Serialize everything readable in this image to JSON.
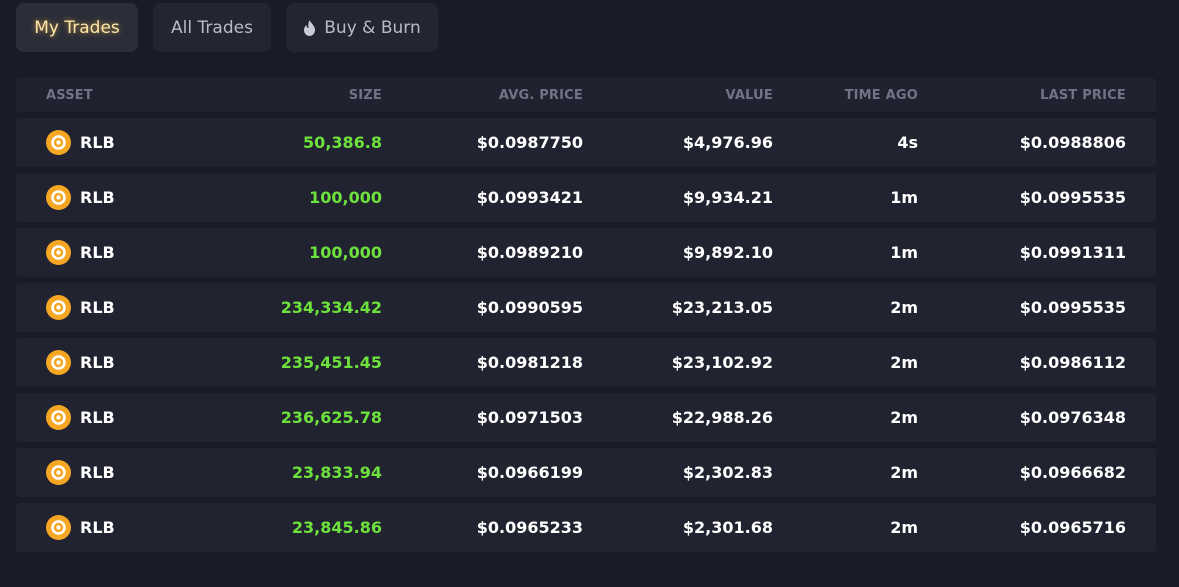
{
  "tabs": [
    {
      "label": "My Trades",
      "active": true
    },
    {
      "label": "All Trades",
      "active": false
    },
    {
      "label": "Buy & Burn",
      "active": false,
      "icon": "fire-icon"
    }
  ],
  "table": {
    "headers": {
      "asset": "ASSET",
      "size": "SIZE",
      "avg_price": "AVG. PRICE",
      "value": "VALUE",
      "time_ago": "TIME AGO",
      "last_price": "LAST PRICE"
    },
    "rows": [
      {
        "asset": "RLB",
        "size": "50,386.8",
        "avg_price": "$0.0987750",
        "value": "$4,976.96",
        "time_ago": "4s",
        "last_price": "$0.0988806"
      },
      {
        "asset": "RLB",
        "size": "100,000",
        "avg_price": "$0.0993421",
        "value": "$9,934.21",
        "time_ago": "1m",
        "last_price": "$0.0995535"
      },
      {
        "asset": "RLB",
        "size": "100,000",
        "avg_price": "$0.0989210",
        "value": "$9,892.10",
        "time_ago": "1m",
        "last_price": "$0.0991311"
      },
      {
        "asset": "RLB",
        "size": "234,334.42",
        "avg_price": "$0.0990595",
        "value": "$23,213.05",
        "time_ago": "2m",
        "last_price": "$0.0995535"
      },
      {
        "asset": "RLB",
        "size": "235,451.45",
        "avg_price": "$0.0981218",
        "value": "$23,102.92",
        "time_ago": "2m",
        "last_price": "$0.0986112"
      },
      {
        "asset": "RLB",
        "size": "236,625.78",
        "avg_price": "$0.0971503",
        "value": "$22,988.26",
        "time_ago": "2m",
        "last_price": "$0.0976348"
      },
      {
        "asset": "RLB",
        "size": "23,833.94",
        "avg_price": "$0.0966199",
        "value": "$2,302.83",
        "time_ago": "2m",
        "last_price": "$0.0966682"
      },
      {
        "asset": "RLB",
        "size": "23,845.86",
        "avg_price": "$0.0965233",
        "value": "$2,301.68",
        "time_ago": "2m",
        "last_price": "$0.0965716"
      }
    ]
  },
  "colors": {
    "background": "#191b26",
    "row_bg": "#212330",
    "size_green": "#6ee23c",
    "coin_orange": "#f5a623",
    "active_tab_text": "#ffe7a8"
  },
  "icons": {
    "asset": "rlb-coin-icon",
    "burn_tab": "fire-icon"
  }
}
